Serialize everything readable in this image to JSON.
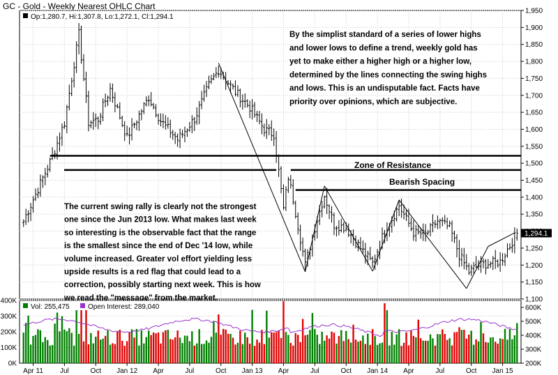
{
  "header": {
    "title": "GC - Gold - Weekly Nearest OHLC Chart"
  },
  "legend": {
    "price": "Op:1,280.7, Hi:1,307.8, Lo:1,272.1, Cl:1,294.1",
    "last_price_tag": "1,294.1",
    "volume": "Vol: 255,475",
    "open_interest": "Open Interest: 289,040"
  },
  "colors": {
    "up_bar": "#008000",
    "down_bar": "#e00000",
    "price_bar": "#000000",
    "oi_line": "#9933cc",
    "legend_bg": "#ffffff",
    "panel_border": "#000000",
    "grid": "#c8c8c8"
  },
  "annotations": {
    "top_note": [
      "By the simplist standard of a series of lower highs",
      "and lower lows to define a trend, weekly gold has",
      "yet to make either a higher high or a higher low,",
      "determined by the lines connecting the swing highs",
      "and lows.  This is an undisputable fact.  Facts have",
      "priority over opinions, which are subjective."
    ],
    "bottom_note": [
      "The current swing rally is clearly not the strongest",
      "one since the Jun 2013 low.  What makes last week",
      "so interesting is the observable fact that the range",
      "is the smallest since the end of Dec '14 low, while",
      "volume increased.  Greater vol effort yielding less",
      "upside results is a red flag that could lead to a",
      "correction, possibly starting next week.  This is how",
      "we read the \"message\" from the market."
    ],
    "zone_resistance": "Zone of Resistance",
    "bearish_spacing": "Bearish Spacing"
  },
  "chart_data": {
    "type": "ohlc",
    "title": "GC - Gold - Weekly Nearest OHLC Chart",
    "price_axis": {
      "ticks": [
        1100,
        1150,
        1200,
        1250,
        1300,
        1350,
        1400,
        1450,
        1500,
        1550,
        1600,
        1650,
        1700,
        1750,
        1800,
        1850,
        1900,
        1950
      ],
      "tick_labels": [
        "1,100",
        "1,150",
        "1,200",
        "1,250",
        "1,300",
        "1,350",
        "1,400",
        "1,450",
        "1,500",
        "1,550",
        "1,600",
        "1,650",
        "1,700",
        "1,750",
        "1,800",
        "1,850",
        "1,900",
        "1,950"
      ],
      "range": [
        1100,
        1950
      ]
    },
    "x_axis": {
      "tick_labels": [
        "Apr 11",
        "Jul",
        "Oct",
        "Jan 12",
        "Apr",
        "Jul",
        "Oct",
        "Jan 13",
        "Apr",
        "Jul",
        "Oct",
        "Jan 14",
        "Apr",
        "Jul",
        "Oct",
        "Jan 15"
      ],
      "tick_weeks": [
        4,
        17,
        30,
        43,
        56,
        69,
        82,
        95,
        108,
        121,
        134,
        147,
        160,
        173,
        186,
        199
      ]
    },
    "volume_axis": {
      "ticks": [
        0,
        100000,
        200000,
        300000,
        400000
      ],
      "tick_labels": [
        "0K",
        "100K",
        "200K",
        "300K",
        "400K"
      ],
      "range": [
        0,
        400000
      ]
    },
    "oi_axis": {
      "ticks": [
        200000,
        300000,
        400000,
        500000,
        600000
      ],
      "tick_labels": [
        "200K",
        "300K",
        "400K",
        "500K",
        "600K"
      ],
      "range": [
        200000,
        650000
      ]
    },
    "horizontal_lines": [
      {
        "price": 1522,
        "from_week": 11,
        "to_week": 210
      },
      {
        "price": 1480,
        "from_week": 0,
        "to_week": 105
      },
      {
        "price": 1480,
        "from_week": 111,
        "to_week": 210
      },
      {
        "price": 1421,
        "from_week": 113,
        "to_week": 210
      }
    ],
    "trend_lines": [
      {
        "from": {
          "week": 81,
          "price": 1795
        },
        "to": {
          "week": 117,
          "price": 1180
        }
      },
      {
        "from": {
          "week": 117,
          "price": 1180
        },
        "to": {
          "week": 125,
          "price": 1433
        }
      },
      {
        "from": {
          "week": 125,
          "price": 1433
        },
        "to": {
          "week": 145,
          "price": 1182
        }
      },
      {
        "from": {
          "week": 145,
          "price": 1182
        },
        "to": {
          "week": 156,
          "price": 1392
        }
      },
      {
        "from": {
          "week": 156,
          "price": 1392
        },
        "to": {
          "week": 184,
          "price": 1131
        }
      },
      {
        "from": {
          "week": 184,
          "price": 1131
        },
        "to": {
          "week": 193,
          "price": 1255
        }
      },
      {
        "from": {
          "week": 193,
          "price": 1255
        },
        "to": {
          "week": 204,
          "price": 1295
        }
      }
    ],
    "anchors": [
      {
        "week": 0,
        "price": 1330
      },
      {
        "week": 12,
        "price": 1520
      },
      {
        "week": 17,
        "price": 1620
      },
      {
        "week": 23,
        "price": 1880
      },
      {
        "week": 27,
        "price": 1620
      },
      {
        "week": 31,
        "price": 1630
      },
      {
        "week": 36,
        "price": 1720
      },
      {
        "week": 43,
        "price": 1575
      },
      {
        "week": 52,
        "price": 1695
      },
      {
        "week": 57,
        "price": 1625
      },
      {
        "week": 64,
        "price": 1570
      },
      {
        "week": 71,
        "price": 1630
      },
      {
        "week": 77,
        "price": 1730
      },
      {
        "week": 81,
        "price": 1775
      },
      {
        "week": 88,
        "price": 1710
      },
      {
        "week": 94,
        "price": 1665
      },
      {
        "week": 100,
        "price": 1600
      },
      {
        "week": 104,
        "price": 1585
      },
      {
        "week": 108,
        "price": 1365
      },
      {
        "week": 110,
        "price": 1460
      },
      {
        "week": 112,
        "price": 1395
      },
      {
        "week": 117,
        "price": 1200
      },
      {
        "week": 121,
        "price": 1310
      },
      {
        "week": 125,
        "price": 1405
      },
      {
        "week": 129,
        "price": 1320
      },
      {
        "week": 134,
        "price": 1310
      },
      {
        "week": 140,
        "price": 1250
      },
      {
        "week": 145,
        "price": 1205
      },
      {
        "week": 150,
        "price": 1300
      },
      {
        "week": 156,
        "price": 1375
      },
      {
        "week": 162,
        "price": 1295
      },
      {
        "week": 167,
        "price": 1290
      },
      {
        "week": 172,
        "price": 1330
      },
      {
        "week": 177,
        "price": 1310
      },
      {
        "week": 181,
        "price": 1230
      },
      {
        "week": 185,
        "price": 1180
      },
      {
        "week": 189,
        "price": 1200
      },
      {
        "week": 194,
        "price": 1205
      },
      {
        "week": 198,
        "price": 1210
      },
      {
        "week": 203,
        "price": 1270
      },
      {
        "week": 205,
        "price": 1294
      }
    ],
    "num_weeks": 206,
    "last_bar": {
      "open": 1280.7,
      "high": 1307.8,
      "low": 1272.1,
      "close": 1294.1
    },
    "volume_last": 255475,
    "open_interest_last": 289040
  }
}
